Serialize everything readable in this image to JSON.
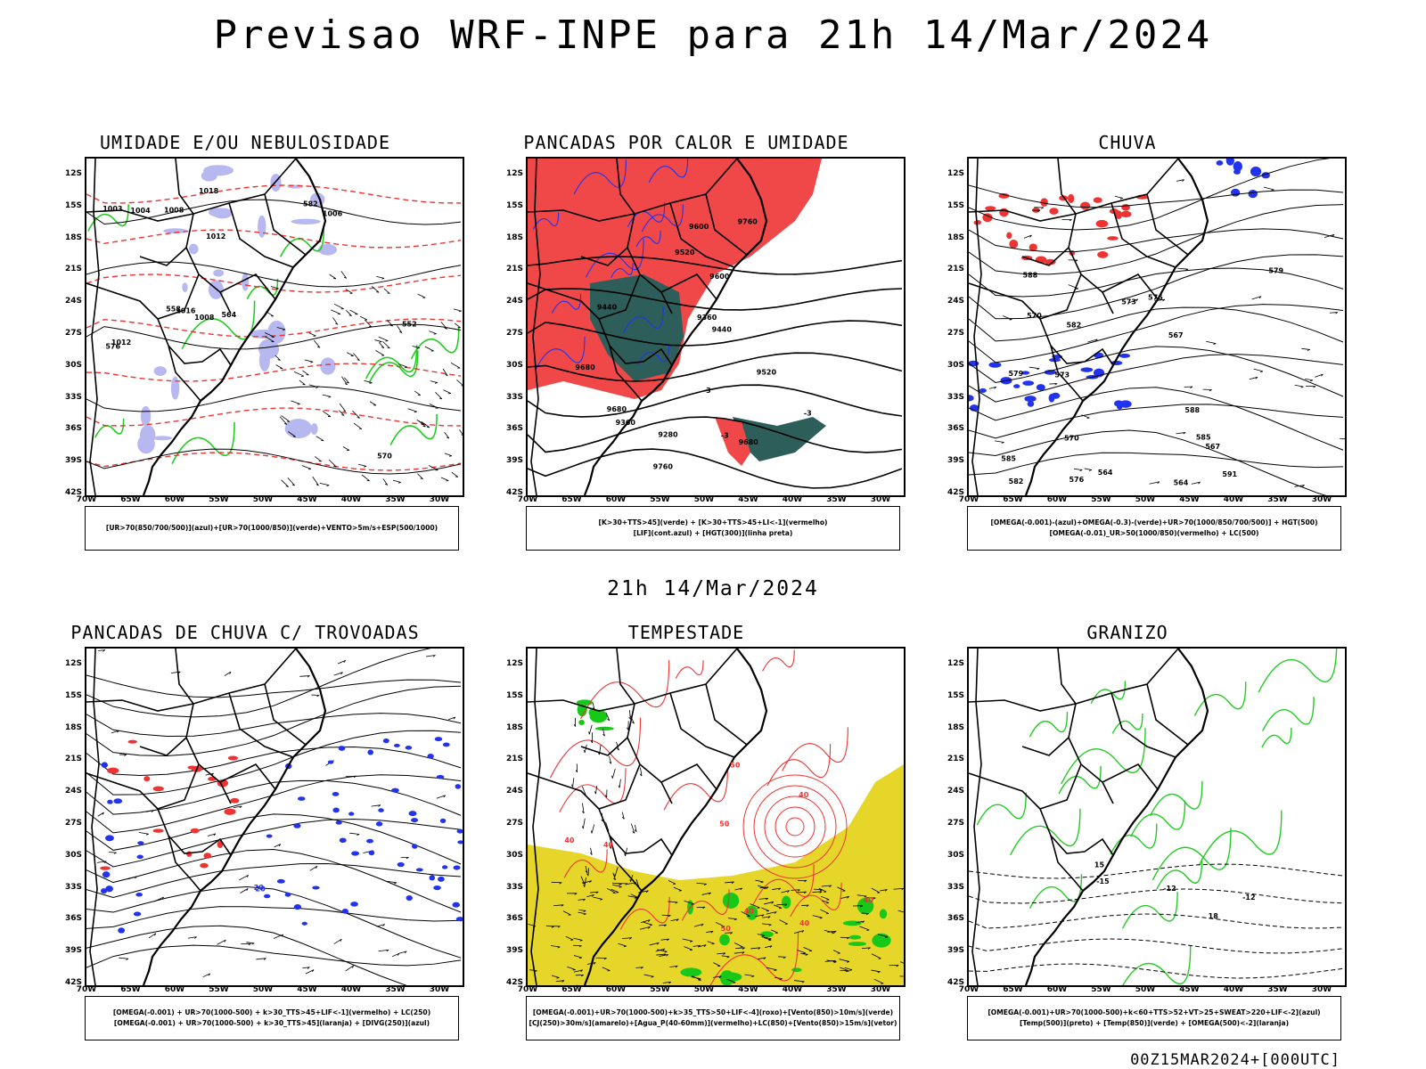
{
  "header": {
    "title": "Previsao WRF-INPE  para 21h 14/Mar/2024"
  },
  "mid_date": "21h 14/Mar/2024",
  "footer": {
    "stamp": "00Z15MAR2024+[000UTC]"
  },
  "axes": {
    "lat_labels": [
      "12S",
      "15S",
      "18S",
      "21S",
      "24S",
      "27S",
      "30S",
      "33S",
      "36S",
      "39S",
      "42S"
    ],
    "lon_labels": [
      "70W",
      "65W",
      "60W",
      "55W",
      "50W",
      "45W",
      "40W",
      "35W",
      "30W"
    ]
  },
  "colors": {
    "blue_shade": "#b8b8f0",
    "green_contour": "#22cc22",
    "red_contour": "#ee3333",
    "red_fill": "#f04848",
    "teal_fill": "#2e5e5a",
    "blue_contour": "#2233ee",
    "yellow_fill": "#e6d62a",
    "green_fill": "#18c818"
  },
  "panels": [
    {
      "title": "UMIDADE E/OU NEBULOSIDADE",
      "legend": [
        "[UR>70(850/700/500)](azul)+[UR>70(1000/850)](verde)+VENTO>5m/s+ESP(500/1000)"
      ],
      "contour_labels": [
        "1012",
        "1008",
        "1004",
        "1016",
        "1018",
        "1006",
        "1003",
        "1012",
        "1008",
        "576",
        "570",
        "564",
        "582",
        "552",
        "558"
      ]
    },
    {
      "title": "PANCADAS POR CALOR E UMIDADE",
      "legend": [
        "[K>30+TTS>45](verde) + [K>30+TTS>45+LI<-1](vermelho)",
        "[LIF](cont.azul) + [HGT(300)](linha preta)"
      ],
      "contour_labels": [
        "9680",
        "9760",
        "9680",
        "9600",
        "9520",
        "9440",
        "9360",
        "9280",
        "9680",
        "9760",
        "9600",
        "9520",
        "9440",
        "9360",
        "-3",
        "-3",
        "-3"
      ]
    },
    {
      "title": "CHUVA",
      "legend": [
        "[OMEGA(-0.001)-(azul)+OMEGA(-0.3)-(verde)+UR>70(1000/850/700/500)] + HGT(500)",
        "[OMEGA(-0.01)_UR>50(1000/850)(vermelho) + LC(500)"
      ],
      "contour_labels": [
        "591",
        "588",
        "585",
        "582",
        "579",
        "576",
        "573",
        "570",
        "567",
        "564",
        "588",
        "585",
        "582",
        "579",
        "576",
        "573",
        "570",
        "567",
        "564"
      ]
    },
    {
      "title": "PANCADAS DE CHUVA C/ TROVOADAS",
      "legend": [
        "[OMEGA(-0.001) + UR>70(1000-500) + k>30_TTS>45+LIF<-1](vermelho) + LC(250)",
        "[OMEGA(-0.001) + UR>70(1000-500) + k>30_TTS>45](laranja) + [DIVG(250)](azul)"
      ],
      "contour_labels": [
        "20",
        "20"
      ]
    },
    {
      "title": "TEMPESTADE",
      "legend": [
        "[OMEGA(-0.001)+UR>70(1000-500)+k>35_TTS>50+LIF<-4](roxo)+[Vento(850)>10m/s](verde)",
        "[CJ(250)>30m/s](amarelo)+[Agua_P(40-60mm)](vermelho)+LC(850)+[Vento(850)>15m/s](vetor)"
      ],
      "contour_labels": [
        "40",
        "50",
        "40",
        "50",
        "40",
        "40",
        "50",
        "40",
        "40"
      ]
    },
    {
      "title": "GRANIZO",
      "legend": [
        "[OMEGA(-0.001)+UR>70(1000-500)+k<60+TTS>52+VT>25+SWEAT>220+LIF<-2](azul)",
        "[Temp(500)](preto) + [Temp(850)](verde) + [OMEGA(500)<-2](laranja)"
      ],
      "contour_labels": [
        "-12",
        "-12",
        "15",
        "18",
        "-15"
      ]
    }
  ]
}
